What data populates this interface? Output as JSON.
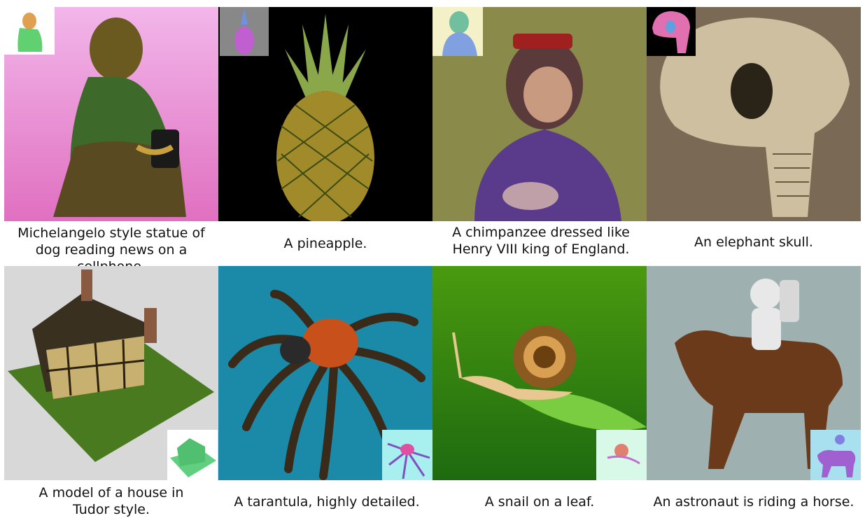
{
  "panels": [
    {
      "caption": "Michelangelo style statue of\ndog reading news on a cellphone.",
      "subject": "bronze-dog-statue"
    },
    {
      "caption": "A pineapple.",
      "subject": "pineapple"
    },
    {
      "caption": "A chimpanzee dressed like\nHenry VIII king of England.",
      "subject": "chimpanzee"
    },
    {
      "caption": "An elephant skull.",
      "subject": "elephant-skull"
    },
    {
      "caption": "A model of a house in\nTudor style.",
      "subject": "tudor-house"
    },
    {
      "caption": "A tarantula, highly detailed.",
      "subject": "tarantula"
    },
    {
      "caption": "A snail on a leaf.",
      "subject": "snail"
    },
    {
      "caption": "An astronaut is riding a horse.",
      "subject": "astronaut-horse"
    }
  ],
  "colors": {
    "dog_bg": "#f0a8e0",
    "pineapple_bg": "#000000",
    "chimp_bg": "#8a8a4a",
    "skull_bg": "#7a6a55",
    "house_bg": "#d8d8d8",
    "tarantula_bg": "#1b8aa8",
    "snail_bg": "#2e8a10",
    "astronaut_bg": "#9fb0b0"
  }
}
